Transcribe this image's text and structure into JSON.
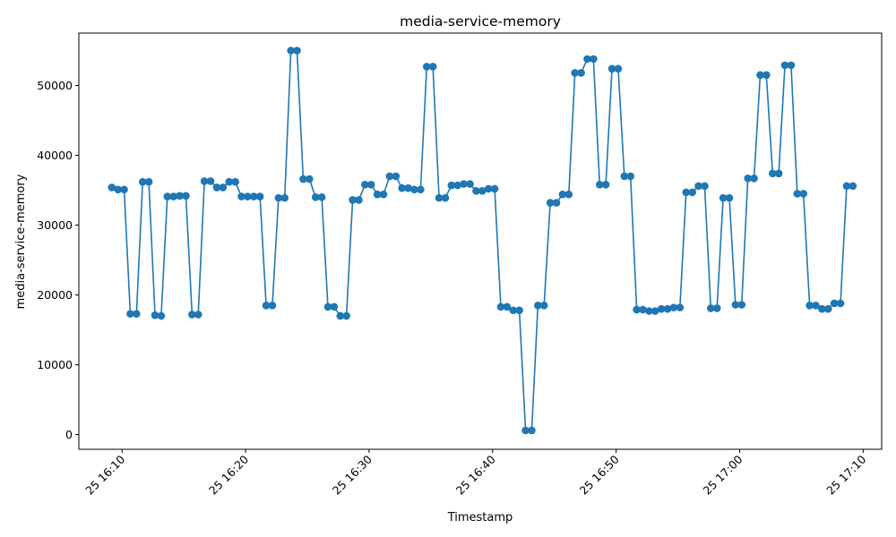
{
  "chart_data": {
    "type": "line",
    "title": "media-service-memory",
    "xlabel": "Timestamp",
    "ylabel": "media-service-memory",
    "x_ticks": [
      "25 16:10",
      "25 16:20",
      "25 16:30",
      "25 16:40",
      "25 16:50",
      "25 17:00",
      "25 17:10"
    ],
    "y_ticks": [
      0,
      10000,
      20000,
      30000,
      40000,
      50000
    ],
    "xlim": [
      "2024-01-25T16:06:30",
      "2024-01-25T17:11:30"
    ],
    "ylim": [
      -2100,
      57500
    ],
    "grid": false,
    "line_color": "#1f77b4",
    "marker": "circle",
    "series": [
      {
        "x": [
          "16:09:10",
          "16:09:40",
          "16:10:10",
          "16:10:40",
          "16:11:10",
          "16:11:40",
          "16:12:10",
          "16:12:40",
          "16:13:10",
          "16:13:40",
          "16:14:10",
          "16:14:40",
          "16:15:10",
          "16:15:40",
          "16:16:10",
          "16:16:40",
          "16:17:10",
          "16:17:40",
          "16:18:10",
          "16:18:40",
          "16:19:10",
          "16:19:40",
          "16:20:10",
          "16:20:40",
          "16:21:10",
          "16:21:40",
          "16:22:10",
          "16:22:40",
          "16:23:10",
          "16:23:40",
          "16:24:10",
          "16:24:40",
          "16:25:10",
          "16:25:40",
          "16:26:10",
          "16:26:40",
          "16:27:10",
          "16:27:40",
          "16:28:10",
          "16:28:40",
          "16:29:10",
          "16:29:40",
          "16:30:10",
          "16:30:40",
          "16:31:10",
          "16:31:40",
          "16:32:10",
          "16:32:40",
          "16:33:10",
          "16:33:40",
          "16:34:10",
          "16:34:40",
          "16:35:10",
          "16:35:40",
          "16:36:10",
          "16:36:40",
          "16:37:10",
          "16:37:40",
          "16:38:10",
          "16:38:40",
          "16:39:10",
          "16:39:40",
          "16:40:10",
          "16:40:40",
          "16:41:10",
          "16:41:40",
          "16:42:10",
          "16:42:40",
          "16:43:10",
          "16:43:40",
          "16:44:10",
          "16:44:40",
          "16:45:10",
          "16:45:40",
          "16:46:10",
          "16:46:40",
          "16:47:10",
          "16:47:40",
          "16:48:10",
          "16:48:40",
          "16:49:10",
          "16:49:40",
          "16:50:10",
          "16:50:40",
          "16:51:10",
          "16:51:40",
          "16:52:10",
          "16:52:40",
          "16:53:10",
          "16:53:40",
          "16:54:10",
          "16:54:40",
          "16:55:10",
          "16:55:40",
          "16:56:10",
          "16:56:40",
          "16:57:10",
          "16:57:40",
          "16:58:10",
          "16:58:40",
          "16:59:10",
          "16:59:40",
          "17:00:10",
          "17:00:40",
          "17:01:10",
          "17:01:40",
          "17:02:10",
          "17:02:40",
          "17:03:10",
          "17:03:40",
          "17:04:10",
          "17:04:40",
          "17:05:10",
          "17:05:40",
          "17:06:10",
          "17:06:40",
          "17:07:10",
          "17:07:40",
          "17:08:10",
          "17:08:40",
          "17:09:10"
        ],
        "y": [
          35400,
          35100,
          35100,
          17300,
          17300,
          36200,
          36200,
          17100,
          17000,
          34100,
          34100,
          34200,
          34200,
          17200,
          17200,
          36300,
          36300,
          35400,
          35400,
          36200,
          36200,
          34100,
          34100,
          34100,
          34100,
          18500,
          18500,
          33900,
          33900,
          55000,
          55000,
          36600,
          36600,
          34000,
          34000,
          18300,
          18300,
          17000,
          17000,
          33600,
          33600,
          35800,
          35800,
          34400,
          34400,
          37000,
          37000,
          35300,
          35300,
          35100,
          35100,
          52700,
          52700,
          33900,
          33900,
          35700,
          35700,
          35900,
          35900,
          34900,
          34900,
          35200,
          35200,
          18300,
          18300,
          17800,
          17800,
          600,
          600,
          18500,
          18500,
          33200,
          33200,
          34400,
          34400,
          51800,
          51800,
          53800,
          53800,
          35800,
          35800,
          52400,
          52400,
          37000,
          37000,
          17900,
          17900,
          17700,
          17700,
          18000,
          18000,
          18200,
          18200,
          34700,
          34700,
          35600,
          35600,
          18100,
          18100,
          33900,
          33900,
          18600,
          18600,
          36700,
          36700,
          51500,
          51500,
          37400,
          37400,
          52900,
          52900,
          34500,
          34500,
          18500,
          18500,
          18000,
          18000,
          18800,
          18800,
          35600,
          35600
        ]
      }
    ]
  }
}
